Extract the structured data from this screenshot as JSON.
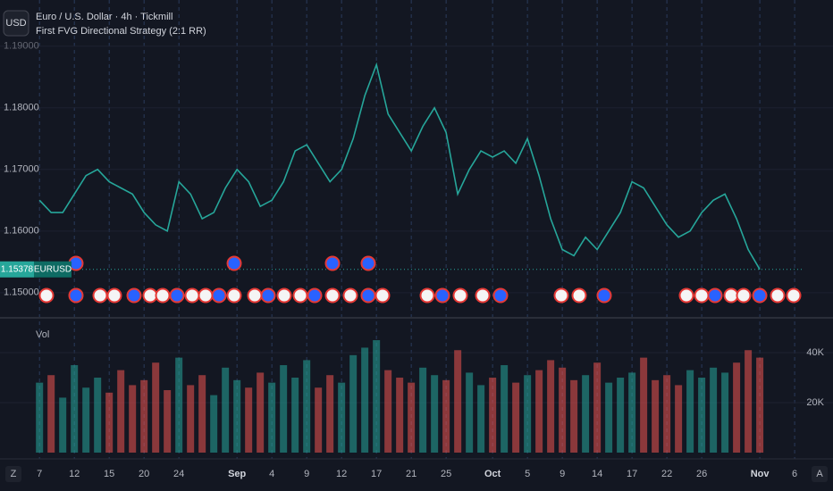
{
  "chart_data": [
    {
      "type": "line",
      "title": "Euro / U.S. Dollar · 4h · Tickmill",
      "subtitle": "First FVG Directional Strategy (2:1 RR)",
      "currency": "USD",
      "symbol": "EURUSD",
      "color": "#26a69a",
      "x": [
        0,
        1,
        2,
        3,
        4,
        5,
        6,
        7,
        8,
        9,
        10,
        11,
        12,
        13,
        14,
        15,
        16,
        17,
        18,
        19,
        20,
        21,
        22,
        23,
        24,
        25,
        26,
        27,
        28,
        29,
        30,
        31,
        32,
        33,
        34,
        35,
        36,
        37,
        38,
        39,
        40,
        41,
        42,
        43,
        44,
        45,
        46,
        47,
        48,
        49,
        50,
        51,
        52,
        53,
        54,
        55,
        56,
        57,
        58,
        59,
        60,
        61,
        62
      ],
      "values": [
        1.165,
        1.163,
        1.163,
        1.166,
        1.169,
        1.17,
        1.168,
        1.167,
        1.166,
        1.163,
        1.161,
        1.16,
        1.168,
        1.166,
        1.162,
        1.163,
        1.167,
        1.17,
        1.168,
        1.164,
        1.165,
        1.168,
        1.173,
        1.174,
        1.171,
        1.168,
        1.17,
        1.175,
        1.182,
        1.187,
        1.179,
        1.176,
        1.173,
        1.177,
        1.18,
        1.176,
        1.166,
        1.17,
        1.173,
        1.172,
        1.173,
        1.171,
        1.175,
        1.169,
        1.162,
        1.157,
        1.156,
        1.159,
        1.157,
        1.16,
        1.163,
        1.168,
        1.167,
        1.164,
        1.161,
        1.159,
        1.16,
        1.163,
        1.165,
        1.166,
        1.162,
        1.157,
        1.15378
      ],
      "xlim": [
        -3.4,
        68.3
      ],
      "ylim": [
        1.1465,
        1.1975
      ],
      "yticks": [
        {
          "value": 1.15,
          "label": "1.15000"
        },
        {
          "value": 1.16,
          "label": "1.16000"
        },
        {
          "value": 1.17,
          "label": "1.17000"
        },
        {
          "value": 1.18,
          "label": "1.18000"
        },
        {
          "value": 1.19,
          "label": "1.19000"
        }
      ],
      "grid": true
    },
    {
      "type": "bar",
      "title": "Vol",
      "up_color": "#26a69a",
      "down_color": "#ef5350",
      "x": [
        0,
        1,
        2,
        3,
        4,
        5,
        6,
        7,
        8,
        9,
        10,
        11,
        12,
        13,
        14,
        15,
        16,
        17,
        18,
        19,
        20,
        21,
        22,
        23,
        24,
        25,
        26,
        27,
        28,
        29,
        30,
        31,
        32,
        33,
        34,
        35,
        36,
        37,
        38,
        39,
        40,
        41,
        42,
        43,
        44,
        45,
        46,
        47,
        48,
        49,
        50,
        51,
        52,
        53,
        54,
        55,
        56,
        57,
        58,
        59,
        60,
        61,
        62
      ],
      "values": [
        28000,
        31000,
        22000,
        35000,
        26000,
        30000,
        24000,
        33000,
        27000,
        29000,
        36000,
        25000,
        38000,
        27000,
        31000,
        23000,
        34000,
        29000,
        26000,
        32000,
        28000,
        35000,
        30000,
        37000,
        26000,
        31000,
        28000,
        39000,
        42000,
        45000,
        33000,
        30000,
        28000,
        34000,
        31000,
        29000,
        41000,
        32000,
        27000,
        30000,
        35000,
        28000,
        31000,
        33000,
        37000,
        34000,
        29000,
        31000,
        36000,
        28000,
        30000,
        32000,
        38000,
        29000,
        31000,
        27000,
        33000,
        30000,
        34000,
        32000,
        36000,
        41000,
        38000
      ],
      "xlim": [
        -3.4,
        68.3
      ],
      "ylim": [
        0,
        51800
      ],
      "yticks": [
        {
          "value": 20000,
          "label": "20K"
        },
        {
          "value": 40000,
          "label": "40K"
        }
      ],
      "xticks": [
        {
          "value": 0,
          "label": "7"
        },
        {
          "value": 3,
          "label": "12"
        },
        {
          "value": 6,
          "label": "15"
        },
        {
          "value": 9,
          "label": "20"
        },
        {
          "value": 12,
          "label": "24"
        },
        {
          "value": 17,
          "label": "Sep"
        },
        {
          "value": 20,
          "label": "4"
        },
        {
          "value": 23,
          "label": "9"
        },
        {
          "value": 26,
          "label": "12"
        },
        {
          "value": 29,
          "label": "17"
        },
        {
          "value": 32,
          "label": "21"
        },
        {
          "value": 35,
          "label": "25"
        },
        {
          "value": 39,
          "label": "Oct"
        },
        {
          "value": 42,
          "label": "5"
        },
        {
          "value": 45,
          "label": "9"
        },
        {
          "value": 48,
          "label": "14"
        },
        {
          "value": 51,
          "label": "17"
        },
        {
          "value": 54,
          "label": "22"
        },
        {
          "value": 57,
          "label": "26"
        },
        {
          "value": 62,
          "label": "Nov"
        },
        {
          "value": 65,
          "label": "6"
        }
      ]
    }
  ],
  "ui": {
    "left_button": "Z",
    "right_button": "A"
  }
}
